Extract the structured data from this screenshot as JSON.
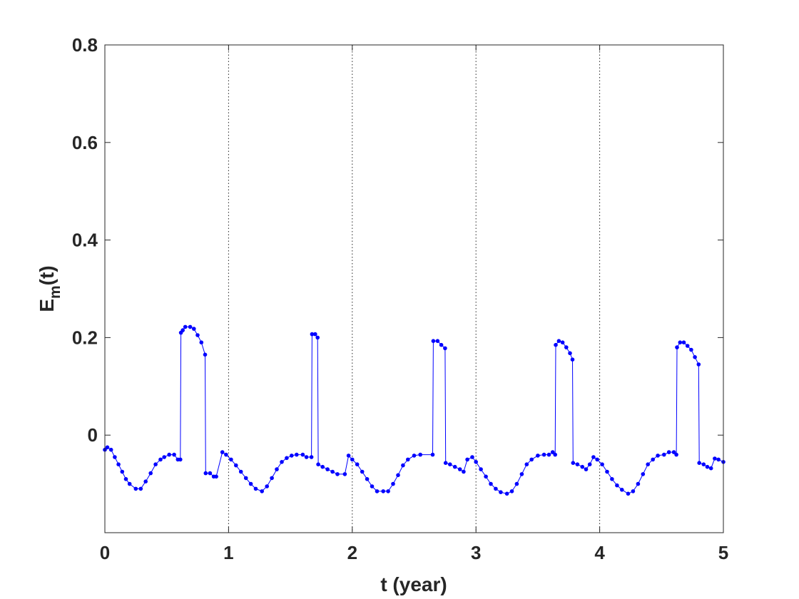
{
  "chart_data": {
    "type": "line",
    "title": "",
    "xlabel": "t (year)",
    "ylabel": {
      "main": "E",
      "sub": "m",
      "suffix": "(t)"
    },
    "xlim": [
      0,
      5
    ],
    "ylim": [
      -0.2,
      0.8
    ],
    "xticks": [
      0,
      1,
      2,
      3,
      4,
      5
    ],
    "xtick_labels": [
      "0",
      "1",
      "2",
      "3",
      "4",
      "5"
    ],
    "yticks": [
      0,
      0.2,
      0.4,
      0.6,
      0.8
    ],
    "ytick_labels": [
      "0",
      "0.2",
      "0.4",
      "0.6",
      "0.8"
    ],
    "vertical_reference_lines": [
      1,
      2,
      3,
      4
    ],
    "grid": false,
    "legend": "none",
    "series": [
      {
        "color": "#0000ff",
        "marker": "dot",
        "points": [
          [
            0.0,
            -0.03
          ],
          [
            0.02,
            -0.025
          ],
          [
            0.05,
            -0.03
          ],
          [
            0.08,
            -0.045
          ],
          [
            0.11,
            -0.06
          ],
          [
            0.14,
            -0.075
          ],
          [
            0.17,
            -0.09
          ],
          [
            0.2,
            -0.1
          ],
          [
            0.25,
            -0.11
          ],
          [
            0.29,
            -0.11
          ],
          [
            0.33,
            -0.095
          ],
          [
            0.37,
            -0.078
          ],
          [
            0.41,
            -0.06
          ],
          [
            0.45,
            -0.05
          ],
          [
            0.48,
            -0.045
          ],
          [
            0.52,
            -0.04
          ],
          [
            0.56,
            -0.04
          ],
          [
            0.59,
            -0.05
          ],
          [
            0.61,
            -0.05
          ],
          [
            0.615,
            0.21
          ],
          [
            0.63,
            0.215
          ],
          [
            0.65,
            0.222
          ],
          [
            0.69,
            0.222
          ],
          [
            0.72,
            0.218
          ],
          [
            0.75,
            0.205
          ],
          [
            0.78,
            0.19
          ],
          [
            0.81,
            0.165
          ],
          [
            0.815,
            -0.078
          ],
          [
            0.85,
            -0.078
          ],
          [
            0.88,
            -0.085
          ],
          [
            0.9,
            -0.085
          ],
          [
            0.95,
            -0.035
          ],
          [
            0.98,
            -0.04
          ],
          [
            1.02,
            -0.05
          ],
          [
            1.06,
            -0.062
          ],
          [
            1.1,
            -0.075
          ],
          [
            1.14,
            -0.088
          ],
          [
            1.18,
            -0.1
          ],
          [
            1.22,
            -0.11
          ],
          [
            1.27,
            -0.115
          ],
          [
            1.31,
            -0.105
          ],
          [
            1.35,
            -0.088
          ],
          [
            1.39,
            -0.07
          ],
          [
            1.43,
            -0.055
          ],
          [
            1.47,
            -0.047
          ],
          [
            1.51,
            -0.042
          ],
          [
            1.55,
            -0.04
          ],
          [
            1.6,
            -0.04
          ],
          [
            1.63,
            -0.045
          ],
          [
            1.67,
            -0.045
          ],
          [
            1.675,
            0.207
          ],
          [
            1.7,
            0.207
          ],
          [
            1.72,
            0.2
          ],
          [
            1.725,
            -0.06
          ],
          [
            1.76,
            -0.065
          ],
          [
            1.8,
            -0.07
          ],
          [
            1.84,
            -0.075
          ],
          [
            1.88,
            -0.08
          ],
          [
            1.94,
            -0.08
          ],
          [
            1.97,
            -0.042
          ],
          [
            2.0,
            -0.05
          ],
          [
            2.04,
            -0.06
          ],
          [
            2.08,
            -0.075
          ],
          [
            2.12,
            -0.09
          ],
          [
            2.16,
            -0.105
          ],
          [
            2.2,
            -0.115
          ],
          [
            2.25,
            -0.115
          ],
          [
            2.29,
            -0.115
          ],
          [
            2.33,
            -0.1
          ],
          [
            2.37,
            -0.082
          ],
          [
            2.41,
            -0.062
          ],
          [
            2.45,
            -0.05
          ],
          [
            2.5,
            -0.042
          ],
          [
            2.55,
            -0.04
          ],
          [
            2.65,
            -0.04
          ],
          [
            2.655,
            0.193
          ],
          [
            2.69,
            0.193
          ],
          [
            2.72,
            0.185
          ],
          [
            2.75,
            0.178
          ],
          [
            2.755,
            -0.057
          ],
          [
            2.79,
            -0.06
          ],
          [
            2.83,
            -0.065
          ],
          [
            2.87,
            -0.07
          ],
          [
            2.9,
            -0.075
          ],
          [
            2.93,
            -0.05
          ],
          [
            2.97,
            -0.045
          ],
          [
            3.0,
            -0.055
          ],
          [
            3.04,
            -0.07
          ],
          [
            3.08,
            -0.085
          ],
          [
            3.12,
            -0.1
          ],
          [
            3.16,
            -0.11
          ],
          [
            3.2,
            -0.117
          ],
          [
            3.25,
            -0.12
          ],
          [
            3.29,
            -0.115
          ],
          [
            3.33,
            -0.1
          ],
          [
            3.37,
            -0.08
          ],
          [
            3.41,
            -0.06
          ],
          [
            3.45,
            -0.05
          ],
          [
            3.5,
            -0.042
          ],
          [
            3.55,
            -0.04
          ],
          [
            3.59,
            -0.04
          ],
          [
            3.62,
            -0.035
          ],
          [
            3.64,
            -0.04
          ],
          [
            3.645,
            0.185
          ],
          [
            3.67,
            0.193
          ],
          [
            3.7,
            0.19
          ],
          [
            3.73,
            0.18
          ],
          [
            3.76,
            0.168
          ],
          [
            3.78,
            0.155
          ],
          [
            3.785,
            -0.057
          ],
          [
            3.82,
            -0.06
          ],
          [
            3.86,
            -0.065
          ],
          [
            3.89,
            -0.07
          ],
          [
            3.92,
            -0.06
          ],
          [
            3.95,
            -0.045
          ],
          [
            3.98,
            -0.05
          ],
          [
            4.02,
            -0.06
          ],
          [
            4.06,
            -0.075
          ],
          [
            4.1,
            -0.09
          ],
          [
            4.14,
            -0.103
          ],
          [
            4.18,
            -0.112
          ],
          [
            4.23,
            -0.12
          ],
          [
            4.27,
            -0.115
          ],
          [
            4.31,
            -0.1
          ],
          [
            4.35,
            -0.08
          ],
          [
            4.39,
            -0.06
          ],
          [
            4.43,
            -0.05
          ],
          [
            4.47,
            -0.042
          ],
          [
            4.52,
            -0.04
          ],
          [
            4.56,
            -0.035
          ],
          [
            4.6,
            -0.035
          ],
          [
            4.62,
            -0.04
          ],
          [
            4.625,
            0.18
          ],
          [
            4.65,
            0.19
          ],
          [
            4.68,
            0.19
          ],
          [
            4.71,
            0.183
          ],
          [
            4.74,
            0.175
          ],
          [
            4.77,
            0.16
          ],
          [
            4.8,
            0.145
          ],
          [
            4.805,
            -0.057
          ],
          [
            4.84,
            -0.06
          ],
          [
            4.87,
            -0.065
          ],
          [
            4.9,
            -0.068
          ],
          [
            4.93,
            -0.048
          ],
          [
            4.96,
            -0.05
          ],
          [
            5.0,
            -0.055
          ]
        ]
      }
    ]
  }
}
